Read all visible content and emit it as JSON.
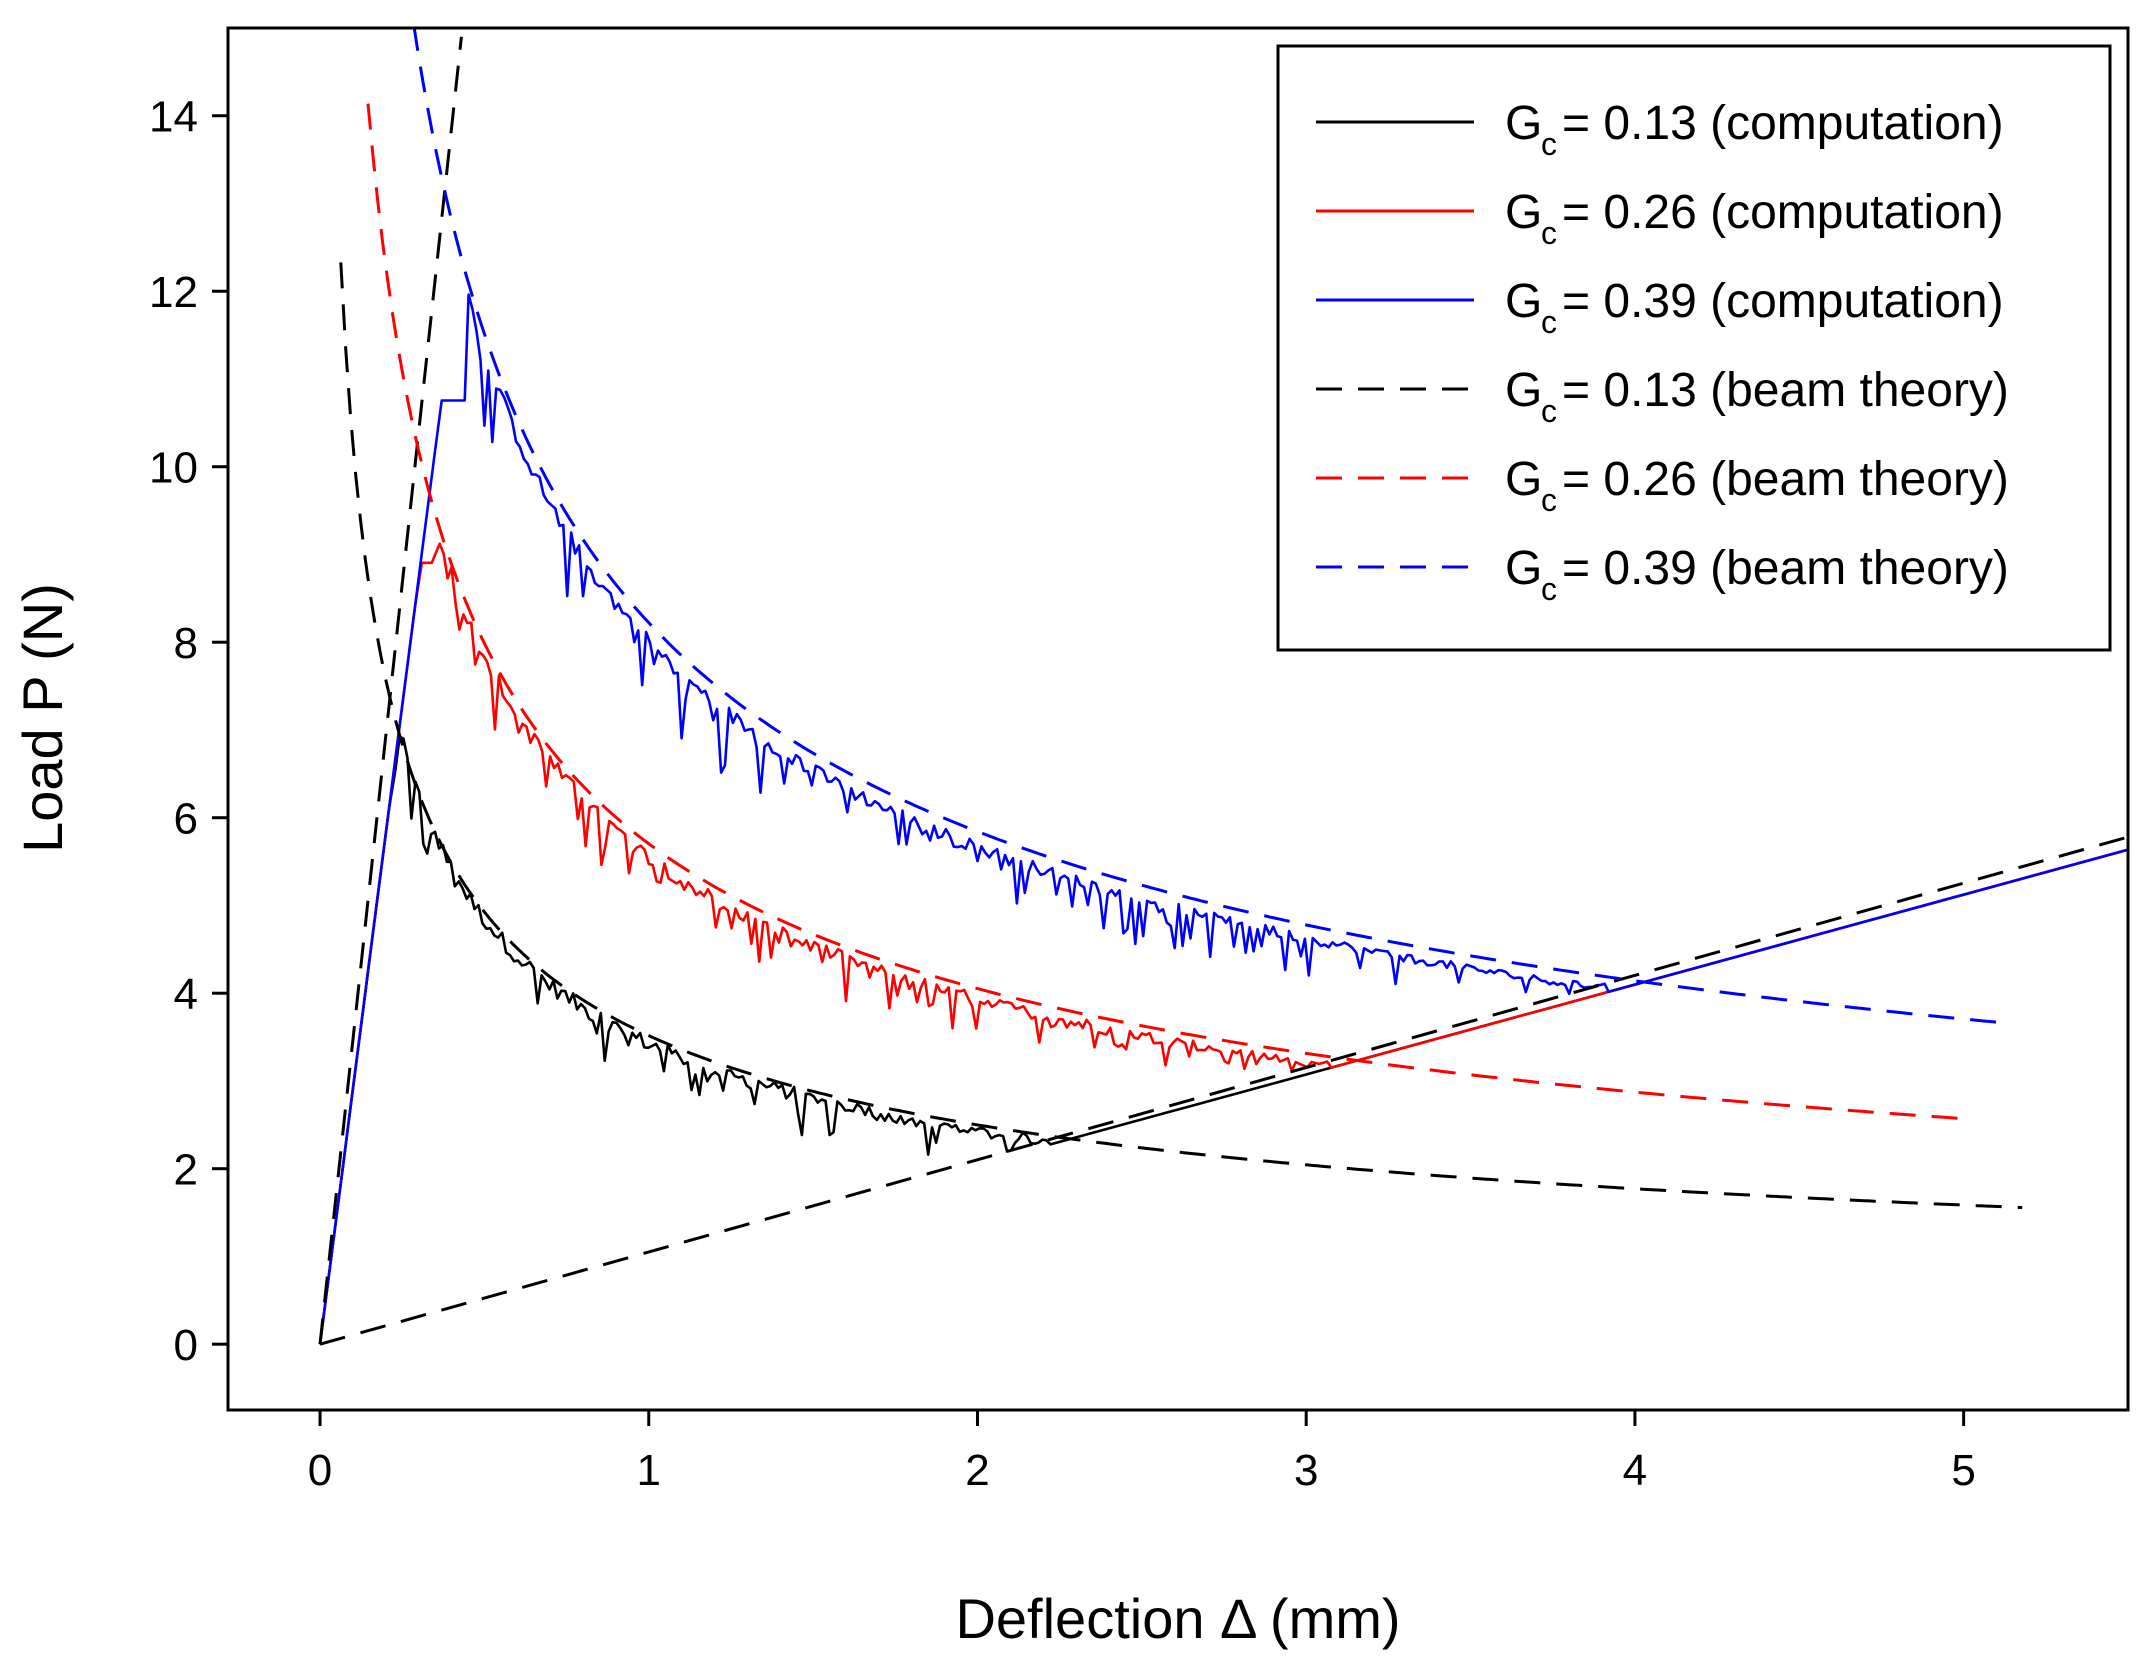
{
  "chart_data": {
    "type": "line",
    "title": "",
    "xlabel": "Deflection Δ (mm)",
    "ylabel": "Load P (N)",
    "xlim": [
      -0.28,
      5.5
    ],
    "ylim": [
      -0.75,
      15.0
    ],
    "x_ticks": [
      0,
      1,
      2,
      3,
      4,
      5
    ],
    "y_ticks": [
      0,
      2,
      4,
      6,
      8,
      10,
      12,
      14
    ],
    "grid": false,
    "legend_position": "top-right",
    "series": [
      {
        "name": "0.13 (computation)",
        "legend_base": "G",
        "legend_sub": "c",
        "legend_rest": " = 0.13 (computation)",
        "color": "#000000",
        "style": "solid",
        "Gc": 0.13,
        "linear_slope": 29.1,
        "peak_x": 0.23,
        "end_x": 5.5,
        "noise_amp": 0.55
      },
      {
        "name": "0.26 (computation)",
        "legend_base": "G",
        "legend_sub": "c",
        "legend_rest": " = 0.26 (computation)",
        "color": "#ff0000",
        "style": "solid",
        "Gc": 0.26,
        "linear_slope": 29.1,
        "peak_x": 0.34,
        "end_x": 5.5,
        "noise_amp": 0.55
      },
      {
        "name": "0.39 (computation)",
        "legend_base": "G",
        "legend_sub": "c",
        "legend_rest": " = 0.39 (computation)",
        "color": "#0000ff",
        "style": "solid",
        "Gc": 0.39,
        "linear_slope": 29.1,
        "peak_x": 0.44,
        "end_x": 5.5,
        "noise_amp": 0.85
      },
      {
        "name": "0.13 (beam theory)",
        "legend_base": "G",
        "legend_sub": "c",
        "legend_rest": " = 0.13 (beam theory)",
        "color": "#000000",
        "style": "dashed",
        "linear_steep": {
          "x": [
            0,
            0.43
          ],
          "y": [
            0,
            14.9
          ]
        },
        "linear_shallow": {
          "x": [
            0,
            5.5
          ],
          "y": [
            0,
            5.78
          ]
        },
        "curve": {
          "k": 7.4,
          "x_start": 0.063,
          "x_end": 5.18
        }
      },
      {
        "name": "0.26 (beam theory)",
        "legend_base": "G",
        "legend_sub": "c",
        "legend_rest": " = 0.26 (beam theory)",
        "color": "#ff0000",
        "style": "dashed",
        "curve": {
          "k": 12.0,
          "x_start": 0.146,
          "x_end": 5.02
        }
      },
      {
        "name": "0.39 (beam theory)",
        "legend_base": "G",
        "legend_sub": "c",
        "legend_rest": " = 0.39 (beam theory)",
        "color": "#0000ff",
        "style": "dashed",
        "curve": {
          "k": 17.3,
          "x_start": 0.25,
          "x_end": 5.15
        }
      }
    ]
  }
}
